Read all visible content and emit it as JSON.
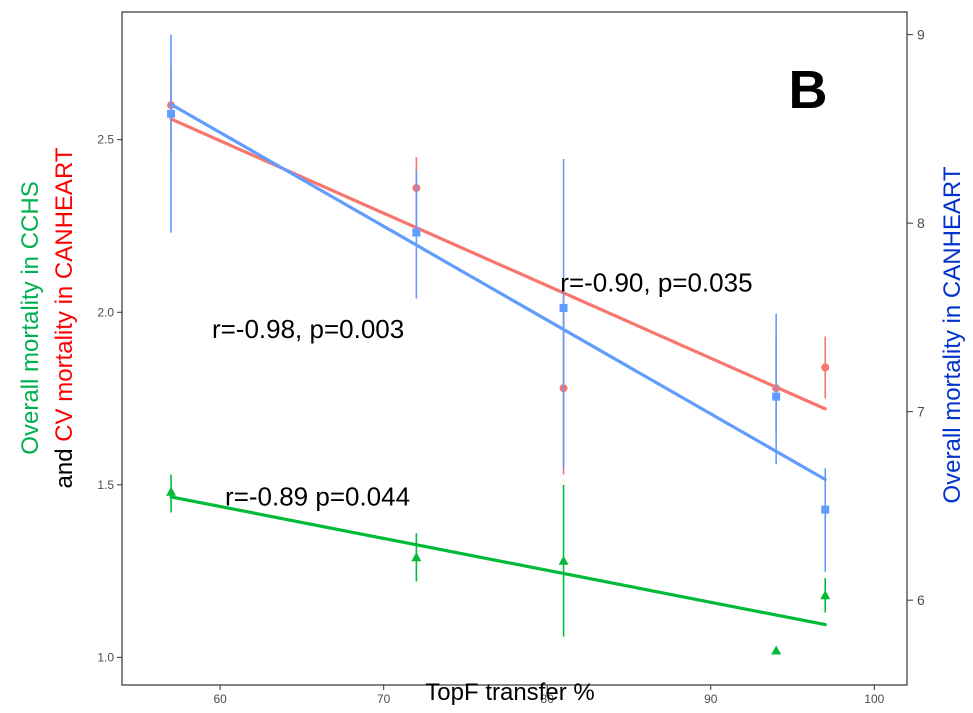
{
  "chart_data": {
    "type": "scatter",
    "panel_label": "B",
    "xlabel": "TopF transfer %",
    "ylabel_left": {
      "line1": "Overall mortality in CCHS",
      "line2_prefix": "and ",
      "line2_highlight": "CV mortality in CANHEART"
    },
    "ylabel_right": "Overall mortality in CANHEART",
    "xlim": [
      54,
      102
    ],
    "ylim_left": [
      0.92,
      2.87
    ],
    "ylim_right": [
      5.55,
      9.12
    ],
    "x_ticks": [
      60,
      70,
      80,
      90,
      100
    ],
    "y_left_ticks": [
      1.0,
      1.5,
      2.0,
      2.5
    ],
    "y_right_ticks": [
      6,
      7,
      8,
      9
    ],
    "grid": false,
    "colors": {
      "green": "#00ba38",
      "red": "#f8766d",
      "blue": "#619cff",
      "label_green": "#00b050",
      "label_red": "#ff0000",
      "label_blue": "#0033cc"
    },
    "series": [
      {
        "axis": "left",
        "color": "#f8766d",
        "marker": "circle",
        "points": [
          {
            "x": 57,
            "y": 2.6,
            "lo": 2.46,
            "hi": 2.71
          },
          {
            "x": 72,
            "y": 2.36,
            "lo": 2.24,
            "hi": 2.45
          },
          {
            "x": 81,
            "y": 1.78,
            "lo": 1.53,
            "hi": 2.08
          },
          {
            "x": 94,
            "y": 1.78,
            "lo": 1.65,
            "hi": 1.93
          },
          {
            "x": 97,
            "y": 1.84,
            "lo": 1.75,
            "hi": 1.93
          }
        ],
        "fit": {
          "x": [
            57,
            97
          ],
          "y": [
            2.56,
            1.72
          ]
        }
      },
      {
        "axis": "right",
        "color": "#619cff",
        "marker": "square",
        "points": [
          {
            "x": 57,
            "y": 8.58,
            "lo": 7.95,
            "hi": 9.0
          },
          {
            "x": 72,
            "y": 7.95,
            "lo": 7.6,
            "hi": 8.28
          },
          {
            "x": 81,
            "y": 7.55,
            "lo": 6.7,
            "hi": 8.34
          },
          {
            "x": 94,
            "y": 7.08,
            "lo": 6.72,
            "hi": 7.52
          },
          {
            "x": 97,
            "y": 6.48,
            "lo": 6.15,
            "hi": 6.7
          }
        ],
        "fit": {
          "x": [
            57,
            97
          ],
          "y": [
            8.63,
            6.64
          ]
        }
      },
      {
        "axis": "left",
        "color": "#00ba38",
        "marker": "triangle",
        "points": [
          {
            "x": 57,
            "y": 1.48,
            "lo": 1.42,
            "hi": 1.53
          },
          {
            "x": 72,
            "y": 1.29,
            "lo": 1.22,
            "hi": 1.36
          },
          {
            "x": 81,
            "y": 1.28,
            "lo": 1.06,
            "hi": 1.5
          },
          {
            "x": 94,
            "y": 1.02,
            "lo": 1.02,
            "hi": 1.02
          },
          {
            "x": 97,
            "y": 1.18,
            "lo": 1.13,
            "hi": 1.23
          }
        ],
        "fit": {
          "x": [
            57,
            97
          ],
          "y": [
            1.465,
            1.095
          ]
        }
      }
    ],
    "annotations": [
      {
        "text": "r=-0.90, p=0.035",
        "x": 80.8,
        "y": 2.06
      },
      {
        "text": "r=-0.98, p=0.003",
        "x": 59.5,
        "y": 1.925
      },
      {
        "text": "r=-0.89 p=0.044",
        "x": 60.3,
        "y": 1.44
      }
    ]
  }
}
